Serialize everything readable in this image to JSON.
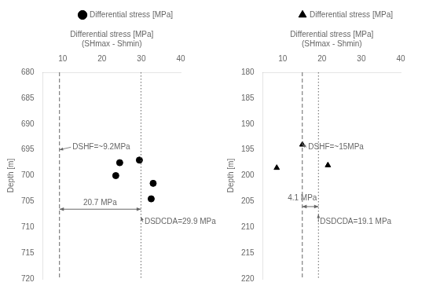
{
  "chart_data": [
    {
      "type": "scatter",
      "xlabel": [
        "Differential stress [MPa]",
        "(SHmax - Shmin)"
      ],
      "ylabel": "Depth [m]",
      "xlim": [
        5,
        40
      ],
      "ylim": [
        720,
        680
      ],
      "xticks": [
        10,
        20,
        30,
        40
      ],
      "yticks": [
        680,
        685,
        690,
        695,
        700,
        705,
        710,
        715,
        720
      ],
      "grid": false,
      "legend": "upper right",
      "x": [
        24.5,
        23.5,
        29.5,
        33.0,
        32.5
      ],
      "series": [
        {
          "name": "Differential stress [MPa]",
          "color": "black",
          "marker": "circle",
          "values": [
            697.5,
            700.0,
            697.0,
            701.5,
            704.5
          ]
        }
      ],
      "annotations": [
        {
          "type": "vline",
          "x": 9.2,
          "line_style": "dashed"
        },
        {
          "type": "vline",
          "x": 29.9,
          "line_style": "dotted"
        },
        {
          "type": "double_arrow",
          "x": [
            9.2,
            29.9
          ],
          "y": 706.5
        },
        {
          "type": "text",
          "text": "20.7 MPa",
          "x": 19.5,
          "y": 706.0
        },
        {
          "type": "pointer",
          "text": "DSHF=~9.2MPa",
          "x": 12.5,
          "y": 694.5,
          "arrow_to": [
            9.2,
            695.0
          ]
        },
        {
          "type": "pointer",
          "text": "DSDCDA=29.9 MPa",
          "x": 30.8,
          "y": 709.0,
          "arrow_to": [
            29.9,
            708.0
          ]
        }
      ]
    },
    {
      "type": "scatter",
      "xlabel": [
        "Differential stress [MPa]",
        "(SHmax - Shmin)"
      ],
      "ylabel": "Depth [m]",
      "xlim": [
        5,
        40
      ],
      "ylim": [
        220,
        180
      ],
      "xticks": [
        10,
        20,
        30,
        40
      ],
      "yticks": [
        180,
        185,
        190,
        195,
        200,
        205,
        210,
        215,
        220
      ],
      "grid": false,
      "legend": "upper right",
      "x": [
        15.0,
        8.5,
        21.5
      ],
      "series": [
        {
          "name": "Differential stress [MPa]",
          "color": "black",
          "marker": "triangle",
          "values": [
            194.0,
            198.5,
            198.0
          ]
        }
      ],
      "annotations": [
        {
          "type": "vline",
          "x": 15.0,
          "line_style": "dashed"
        },
        {
          "type": "vline",
          "x": 19.1,
          "line_style": "dotted"
        },
        {
          "type": "double_arrow",
          "x": [
            15.0,
            19.1
          ],
          "y": 206.0
        },
        {
          "type": "text",
          "text": "4.1 MPa",
          "x": 15.0,
          "y": 205.2
        },
        {
          "type": "pointer",
          "text": "DSHF=~15MPa",
          "x": 16.5,
          "y": 194.5,
          "arrow_to": [
            15.0,
            194.0
          ]
        },
        {
          "type": "pointer",
          "text": "DSDCDA=19.1 MPa",
          "x": 19.5,
          "y": 209.0,
          "arrow_to": [
            19.1,
            207.5
          ]
        }
      ]
    }
  ]
}
